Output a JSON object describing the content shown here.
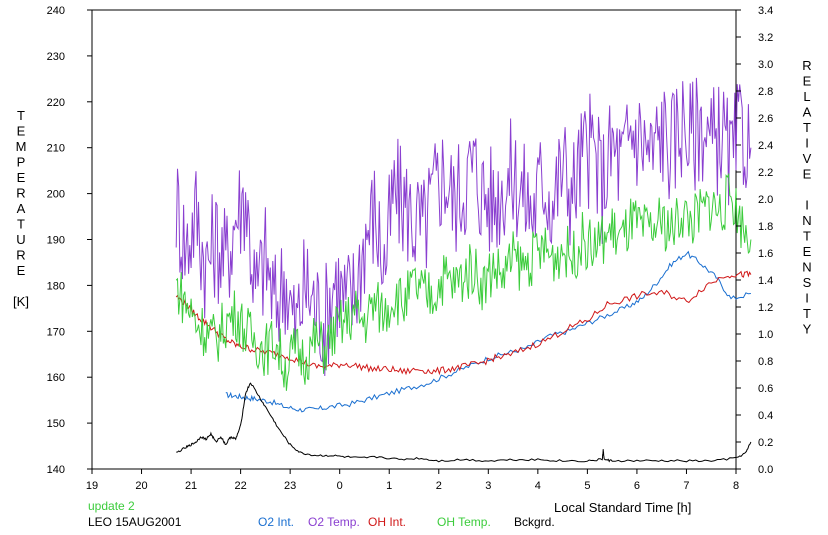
{
  "chart_data": {
    "type": "line",
    "xlabel": "Local Standard Time [h]",
    "ylabel_left": [
      "T",
      "E",
      "M",
      "P",
      "E",
      "R",
      "A",
      "T",
      "U",
      "R",
      "E",
      "",
      "[K]"
    ],
    "ylabel_right": [
      "R",
      "E",
      "L",
      "A",
      "T",
      "I",
      "V",
      "E",
      "",
      "I",
      "N",
      "T",
      "E",
      "N",
      "S",
      "I",
      "T",
      "Y"
    ],
    "x_ticks": [
      "19",
      "20",
      "21",
      "22",
      "23",
      "0",
      "1",
      "2",
      "3",
      "4",
      "5",
      "6",
      "7",
      "8"
    ],
    "y_left_ticks": [
      "140",
      "150",
      "160",
      "170",
      "180",
      "190",
      "200",
      "210",
      "220",
      "230",
      "240"
    ],
    "y_right_ticks": [
      "0.0",
      "0.2",
      "0.4",
      "0.6",
      "0.8",
      "1.0",
      "1.2",
      "1.4",
      "1.6",
      "1.8",
      "2.0",
      "2.2",
      "2.4",
      "2.6",
      "2.8",
      "3.0",
      "3.2",
      "3.4"
    ],
    "xlim": [
      19,
      32
    ],
    "ylim_left": [
      140,
      240
    ],
    "ylim_right": [
      0,
      3.4
    ],
    "annotations": {
      "update": "update 2",
      "station": "LEO 15AUG2001"
    },
    "series": [
      {
        "name": "O2 Int.",
        "axis": "right",
        "color": "#1a6fd0",
        "x": [
          21.7,
          21.9,
          22.1,
          22.3,
          22.6,
          22.9,
          23.2,
          23.5,
          23.8,
          24.2,
          24.6,
          25.0,
          25.4,
          25.8,
          26.2,
          26.6,
          27.0,
          27.4,
          27.8,
          28.2,
          28.6,
          29.0,
          29.4,
          29.8,
          30.1,
          30.4,
          30.7,
          31.0,
          31.3,
          31.6,
          31.9,
          32.3
        ],
        "y": [
          0.55,
          0.54,
          0.53,
          0.52,
          0.5,
          0.46,
          0.44,
          0.44,
          0.46,
          0.48,
          0.52,
          0.56,
          0.6,
          0.64,
          0.7,
          0.76,
          0.82,
          0.86,
          0.9,
          0.98,
          1.02,
          1.08,
          1.14,
          1.2,
          1.26,
          1.38,
          1.52,
          1.6,
          1.52,
          1.42,
          1.26,
          1.3
        ]
      },
      {
        "name": "O2 Temp.",
        "axis": "left",
        "color": "#8a3fd0",
        "x": [
          20.7,
          20.9,
          21.1,
          21.3,
          21.5,
          21.7,
          21.9,
          22.1,
          22.3,
          22.5,
          22.7,
          22.9,
          23.1,
          23.3,
          23.5,
          23.7,
          23.9,
          24.1,
          24.3,
          24.5,
          24.7,
          24.9,
          25.1,
          25.3,
          25.5,
          25.7,
          25.9,
          26.1,
          26.3,
          26.5,
          26.7,
          26.9,
          27.1,
          27.3,
          27.5,
          27.7,
          27.9,
          28.1,
          28.3,
          28.5,
          28.7,
          28.9,
          29.1,
          29.3,
          29.5,
          29.7,
          29.9,
          30.1,
          30.3,
          30.5,
          30.7,
          30.9,
          31.1,
          31.3,
          31.5,
          31.7,
          31.9,
          32.1,
          32.3
        ],
        "y": [
          198,
          188,
          196,
          184,
          190,
          185,
          195,
          200,
          178,
          186,
          175,
          182,
          170,
          180,
          176,
          172,
          182,
          176,
          178,
          190,
          196,
          184,
          200,
          198,
          194,
          192,
          200,
          205,
          198,
          202,
          206,
          200,
          198,
          202,
          204,
          200,
          196,
          204,
          198,
          206,
          200,
          208,
          210,
          202,
          210,
          206,
          214,
          212,
          208,
          214,
          210,
          216,
          212,
          216,
          210,
          214,
          206,
          214,
          210
        ]
      },
      {
        "name": "OH Int.",
        "axis": "right",
        "color": "#d01818",
        "x": [
          20.7,
          20.9,
          21.1,
          21.3,
          21.5,
          21.7,
          21.9,
          22.1,
          22.3,
          22.6,
          22.9,
          23.2,
          23.5,
          23.8,
          24.1,
          24.4,
          24.7,
          25.0,
          25.3,
          25.6,
          25.9,
          26.2,
          26.5,
          26.8,
          27.1,
          27.4,
          27.8,
          28.2,
          28.6,
          29.0,
          29.4,
          29.8,
          30.2,
          30.6,
          31.0,
          31.4,
          31.8,
          32.1,
          32.3
        ],
        "y": [
          1.28,
          1.22,
          1.14,
          1.08,
          1.02,
          0.96,
          0.92,
          0.9,
          0.88,
          0.86,
          0.84,
          0.8,
          0.76,
          0.76,
          0.78,
          0.76,
          0.74,
          0.74,
          0.72,
          0.74,
          0.72,
          0.74,
          0.76,
          0.78,
          0.82,
          0.84,
          0.9,
          0.96,
          1.04,
          1.1,
          1.22,
          1.26,
          1.3,
          1.3,
          1.24,
          1.36,
          1.44,
          1.44,
          1.44
        ]
      },
      {
        "name": "OH Temp.",
        "axis": "left",
        "color": "#3ccc3c",
        "x": [
          20.7,
          20.9,
          21.1,
          21.3,
          21.5,
          21.7,
          21.9,
          22.1,
          22.3,
          22.5,
          22.7,
          22.9,
          23.1,
          23.3,
          23.5,
          23.7,
          23.9,
          24.1,
          24.3,
          24.5,
          24.7,
          24.9,
          25.1,
          25.3,
          25.5,
          25.7,
          25.9,
          26.1,
          26.3,
          26.5,
          26.7,
          26.9,
          27.1,
          27.3,
          27.5,
          27.7,
          27.9,
          28.1,
          28.3,
          28.5,
          28.7,
          28.9,
          29.1,
          29.3,
          29.5,
          29.7,
          29.9,
          30.1,
          30.3,
          30.5,
          30.7,
          30.9,
          31.1,
          31.3,
          31.5,
          31.7,
          31.9,
          32.1,
          32.3
        ],
        "y": [
          180,
          176,
          172,
          170,
          168,
          172,
          174,
          170,
          168,
          166,
          168,
          162,
          166,
          164,
          168,
          166,
          170,
          172,
          174,
          172,
          176,
          174,
          178,
          176,
          180,
          178,
          178,
          182,
          180,
          182,
          184,
          180,
          184,
          182,
          186,
          184,
          186,
          188,
          186,
          188,
          186,
          190,
          188,
          190,
          192,
          190,
          194,
          192,
          192,
          194,
          192,
          196,
          194,
          196,
          198,
          196,
          200,
          194,
          190
        ]
      },
      {
        "name": "Bckgrd.",
        "axis": "right",
        "color": "#000000",
        "x": [
          20.7,
          20.9,
          21.0,
          21.1,
          21.2,
          21.3,
          21.4,
          21.5,
          21.6,
          21.7,
          21.8,
          21.9,
          22.0,
          22.1,
          22.2,
          22.4,
          22.6,
          22.8,
          23.0,
          23.2,
          23.5,
          23.8,
          24.1,
          24.4,
          24.8,
          25.2,
          25.6,
          26.0,
          26.5,
          27.0,
          27.5,
          28.0,
          28.5,
          29.0,
          29.3,
          29.32,
          29.34,
          29.5,
          30.0,
          30.5,
          31.0,
          31.5,
          32.0,
          32.2,
          32.3
        ],
        "y": [
          0.12,
          0.16,
          0.18,
          0.2,
          0.24,
          0.22,
          0.26,
          0.2,
          0.24,
          0.18,
          0.24,
          0.22,
          0.32,
          0.56,
          0.64,
          0.52,
          0.4,
          0.28,
          0.18,
          0.12,
          0.1,
          0.1,
          0.09,
          0.08,
          0.09,
          0.07,
          0.08,
          0.06,
          0.07,
          0.06,
          0.07,
          0.07,
          0.06,
          0.06,
          0.07,
          0.14,
          0.07,
          0.06,
          0.06,
          0.06,
          0.06,
          0.06,
          0.08,
          0.12,
          0.2
        ]
      }
    ]
  }
}
